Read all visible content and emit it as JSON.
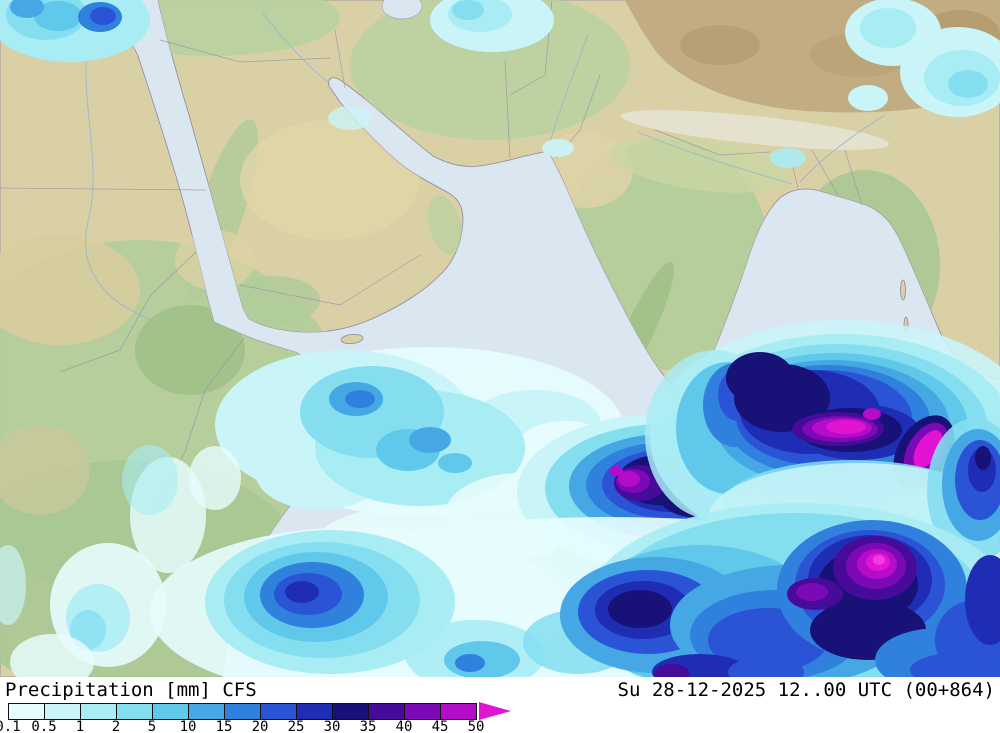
{
  "legend": {
    "title": "Precipitation [mm] CFS",
    "timestamp": "Su 28-12-2025 12..00 UTC (00+864)",
    "scale": {
      "labels": [
        "0.1",
        "0.5",
        "1",
        "2",
        "5",
        "10",
        "15",
        "20",
        "25",
        "30",
        "35",
        "40",
        "45",
        "50"
      ],
      "cell_colors": [
        "#e6fcfd",
        "#c9f4f8",
        "#a8ecf4",
        "#84def0",
        "#60c8eb",
        "#45a8e4",
        "#3080dd",
        "#2a54d5",
        "#1f2cb4",
        "#171178",
        "#470b9a",
        "#7c09b6",
        "#b40cc8"
      ],
      "gt_max_color": "#e114d4"
    }
  },
  "map": {
    "colors": {
      "ocean": "#dbe7f0",
      "land_tan": "#d9d0a5",
      "land_green": "#b0cd9a",
      "plateau_brown": "#c1ab81",
      "coastline": "#9187a0"
    },
    "precip_palette": {
      "p01": "#e6fcfd",
      "p05": "#c9f4f8",
      "p1": "#a8ecf4",
      "p2": "#84def0",
      "p5": "#60c8eb",
      "p10": "#45a8e4",
      "p15": "#3080dd",
      "p20": "#2a54d5",
      "p25": "#1f2cb4",
      "p30": "#171178",
      "p35": "#470b9a",
      "p40": "#7c09b6",
      "p45": "#b40cc8",
      "p50": "#e114d4",
      "p50plus": "#f23ae2"
    }
  }
}
